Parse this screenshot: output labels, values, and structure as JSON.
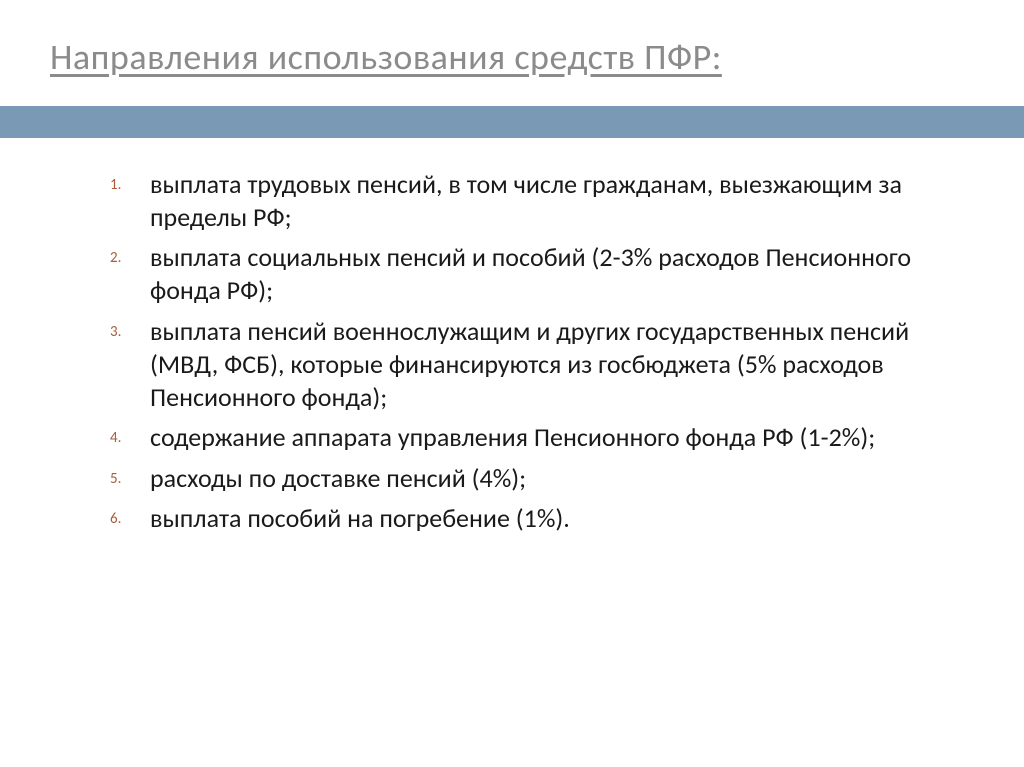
{
  "title": "Направления использования средств ПФР:",
  "accent_bar_color": "#7999b5",
  "title_color": "#8b8b8b",
  "marker_color": "#a85c3a",
  "text_color": "#1a1a1a",
  "title_fontsize": 36,
  "body_fontsize": 26,
  "marker_fontsize": 15,
  "items": [
    "выплата трудовых пенсий, в том числе гражданам, выезжающим за пределы РФ;",
    "выплата социальных пенсий и пособий (2-3% расходов Пенсионного фонда РФ);",
    "выплата пенсий военнослужащим и других государственных пенсий (МВД, ФСБ), которые финансируются из госбюджета (5% расходов Пенсионного фонда);",
    "содержание аппарата управления Пенсионного фонда РФ (1-2%);",
    " расходы по доставке пенсий (4%);",
    "выплата пособий на погребение (1%)."
  ]
}
